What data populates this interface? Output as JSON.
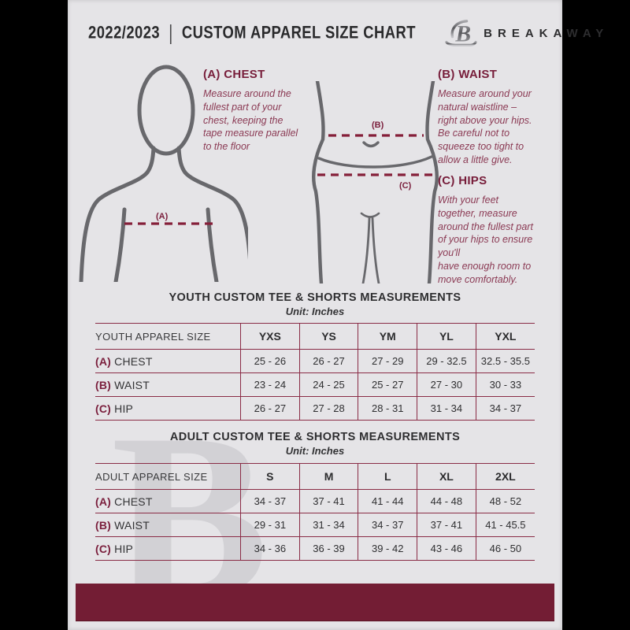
{
  "colors": {
    "page_background": "#000000",
    "document_background": "#e5e4e7",
    "maroon_accent": "#731d34",
    "maroon_heading": "#771d3a",
    "maroon_body_text": "#8b3a54",
    "table_line": "#8a2c46",
    "dark_text": "#2e2e30",
    "figure_gray": "#68686c"
  },
  "header": {
    "year": "2022/2023",
    "separator": "|",
    "title": "CUSTOM APPAREL SIZE CHART",
    "brand": "BREAKAWAY",
    "logo_icon": "breakaway-b-logo"
  },
  "measure_guide": {
    "labels": {
      "chest": "(A)",
      "waist": "(B)",
      "hips": "(C)"
    },
    "chest": {
      "heading": "(A) CHEST",
      "body": "Measure around the\nfullest part of your\nchest, keeping the\ntape measure parallel\nto the floor"
    },
    "waist": {
      "heading": "(B) WAIST",
      "body": "Measure around your\nnatural waistline –\nright above your hips.\nBe careful not to\nsqueeze too tight to\nallow a little give."
    },
    "hips": {
      "heading": "(C) HIPS",
      "body": "With your feet\ntogether, measure\naround the fullest part\nof your hips to ensure\nyou'll\nhave enough room to\nmove comfortably."
    }
  },
  "youth": {
    "title": "YOUTH CUSTOM TEE & SHORTS MEASUREMENTS",
    "unit": "Unit: Inches",
    "header": [
      "YOUTH APPAREL SIZE",
      "YXS",
      "YS",
      "YM",
      "YL",
      "YXL"
    ],
    "rows": [
      {
        "prefix": "(A)",
        "label": "CHEST",
        "values": [
          "25 - 26",
          "26 - 27",
          "27 - 29",
          "29 - 32.5",
          "32.5 - 35.5"
        ]
      },
      {
        "prefix": "(B)",
        "label": "WAIST",
        "values": [
          "23 - 24",
          "24 - 25",
          "25 - 27",
          "27 - 30",
          "30 - 33"
        ]
      },
      {
        "prefix": "(C)",
        "label": "HIP",
        "values": [
          "26 - 27",
          "27 - 28",
          "28 - 31",
          "31 - 34",
          "34 - 37"
        ]
      }
    ]
  },
  "adult": {
    "title": "ADULT CUSTOM TEE & SHORTS MEASUREMENTS",
    "unit": "Unit: Inches",
    "header": [
      "ADULT APPAREL SIZE",
      "S",
      "M",
      "L",
      "XL",
      "2XL"
    ],
    "rows": [
      {
        "prefix": "(A)",
        "label": "CHEST",
        "values": [
          "34 - 37",
          "37 - 41",
          "41 - 44",
          "44 - 48",
          "48 - 52"
        ]
      },
      {
        "prefix": "(B)",
        "label": "WAIST",
        "values": [
          "29 - 31",
          "31 - 34",
          "34 - 37",
          "37 - 41",
          "41 - 45.5"
        ]
      },
      {
        "prefix": "(C)",
        "label": "HIP",
        "values": [
          "34 - 36",
          "36 - 39",
          "39 - 42",
          "43 - 46",
          "46 - 50"
        ]
      }
    ]
  },
  "watermark": {
    "letter": "B"
  }
}
